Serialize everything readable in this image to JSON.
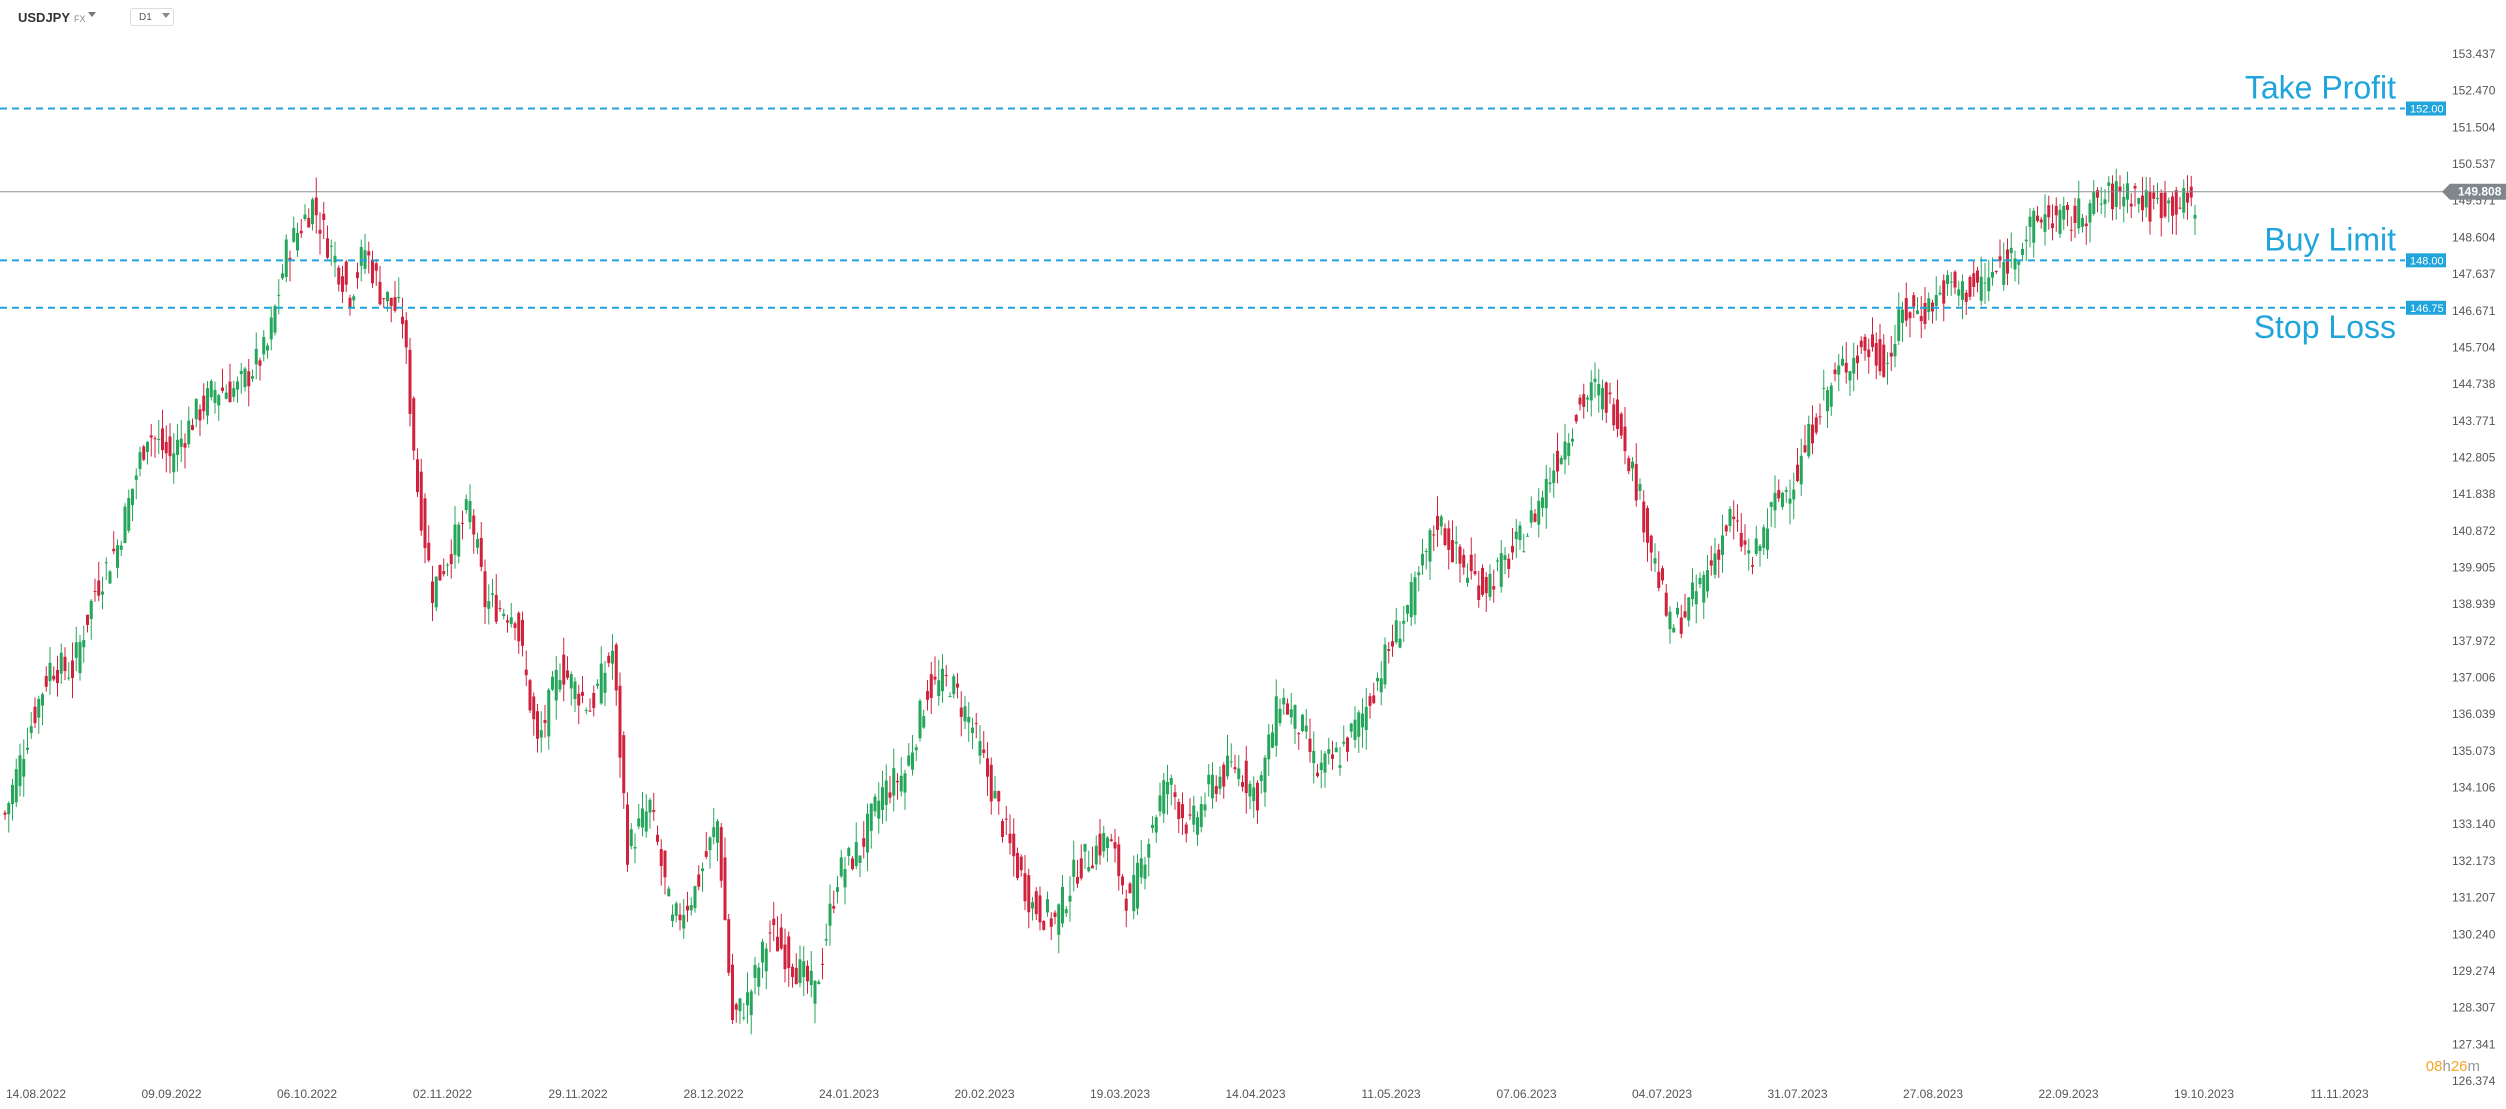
{
  "header": {
    "symbol": "USDJPY",
    "market": "FX",
    "timeframe": "D1"
  },
  "timer": {
    "hours": "08",
    "h": "h",
    "minutes": "26",
    "m": "m"
  },
  "colors": {
    "bull": "#26a65b",
    "bear": "#d0213d",
    "level": "#1fa5dc",
    "current": "#8a8f94"
  },
  "chart_data": {
    "type": "candlestick",
    "yticks": [
      153.437,
      152.47,
      151.504,
      150.537,
      149.571,
      148.604,
      147.637,
      146.671,
      145.704,
      144.738,
      143.771,
      142.805,
      141.838,
      140.872,
      139.905,
      138.939,
      137.972,
      137.006,
      136.039,
      135.073,
      134.106,
      133.14,
      132.173,
      131.207,
      130.24,
      129.274,
      128.307,
      127.341,
      126.374
    ],
    "ytick_labels": [
      "153.437",
      "152.470",
      "151.504",
      "150.537",
      "149.571",
      "148.604",
      "147.637",
      "146.671",
      "145.704",
      "144.738",
      "143.771",
      "142.805",
      "141.838",
      "140.872",
      "139.905",
      "138.939",
      "137.972",
      "137.006",
      "136.039",
      "135.073",
      "134.106",
      "133.140",
      "132.173",
      "131.207",
      "130.240",
      "129.274",
      "128.307",
      "127.341",
      "126.374"
    ],
    "xtick_labels": [
      "14.08.2022",
      "09.09.2022",
      "06.10.2022",
      "02.11.2022",
      "29.11.2022",
      "28.12.2022",
      "24.01.2023",
      "20.02.2023",
      "19.03.2023",
      "14.04.2023",
      "11.05.2023",
      "07.06.2023",
      "04.07.2023",
      "31.07.2023",
      "27.08.2023",
      "22.09.2023",
      "19.10.2023",
      "11.11.2023"
    ],
    "current_price": 149.808,
    "current_price_label": "149.808",
    "levels": [
      {
        "name": "Take Profit",
        "price": 152.0,
        "tag": "152.00"
      },
      {
        "name": "Buy Limit",
        "price": 148.0,
        "tag": "148.00"
      },
      {
        "name": "Stop Loss",
        "price": 146.75,
        "tag": "146.75"
      }
    ],
    "anchors": [
      [
        0,
        133.4
      ],
      [
        6,
        135.5
      ],
      [
        12,
        137.3
      ],
      [
        18,
        137.2
      ],
      [
        24,
        139.3
      ],
      [
        30,
        140.5
      ],
      [
        38,
        143.5
      ],
      [
        44,
        142.8
      ],
      [
        50,
        143.8
      ],
      [
        56,
        144.6
      ],
      [
        62,
        144.6
      ],
      [
        70,
        145.7
      ],
      [
        75,
        148.2
      ],
      [
        82,
        149.5
      ],
      [
        86,
        148.5
      ],
      [
        92,
        147.1
      ],
      [
        96,
        148.3
      ],
      [
        100,
        147.2
      ],
      [
        106,
        146.5
      ],
      [
        110,
        142.0
      ],
      [
        114,
        139.3
      ],
      [
        118,
        140.2
      ],
      [
        124,
        141.5
      ],
      [
        128,
        139.0
      ],
      [
        136,
        138.7
      ],
      [
        142,
        135.2
      ],
      [
        148,
        137.3
      ],
      [
        156,
        136.2
      ],
      [
        162,
        137.7
      ],
      [
        166,
        132.5
      ],
      [
        172,
        133.6
      ],
      [
        178,
        130.5
      ],
      [
        184,
        131.4
      ],
      [
        190,
        133.2
      ],
      [
        194,
        128.0
      ],
      [
        198,
        128.5
      ],
      [
        204,
        130.3
      ],
      [
        210,
        129.5
      ],
      [
        216,
        128.7
      ],
      [
        222,
        131.8
      ],
      [
        228,
        132.5
      ],
      [
        234,
        134.0
      ],
      [
        240,
        134.5
      ],
      [
        246,
        136.7
      ],
      [
        252,
        136.9
      ],
      [
        258,
        135.7
      ],
      [
        264,
        133.8
      ],
      [
        268,
        132.5
      ],
      [
        274,
        131.0
      ],
      [
        280,
        130.6
      ],
      [
        286,
        132.0
      ],
      [
        294,
        132.8
      ],
      [
        300,
        131.0
      ],
      [
        306,
        133.2
      ],
      [
        310,
        134.3
      ],
      [
        316,
        133.0
      ],
      [
        322,
        134.2
      ],
      [
        328,
        134.7
      ],
      [
        334,
        133.9
      ],
      [
        340,
        136.5
      ],
      [
        346,
        135.6
      ],
      [
        350,
        134.5
      ],
      [
        356,
        135.0
      ],
      [
        362,
        136.0
      ],
      [
        368,
        137.5
      ],
      [
        376,
        139.3
      ],
      [
        382,
        141.2
      ],
      [
        388,
        140.0
      ],
      [
        394,
        139.4
      ],
      [
        400,
        140.0
      ],
      [
        406,
        140.9
      ],
      [
        414,
        142.8
      ],
      [
        420,
        144.2
      ],
      [
        424,
        144.6
      ],
      [
        430,
        144.0
      ],
      [
        436,
        141.7
      ],
      [
        440,
        140.0
      ],
      [
        444,
        138.3
      ],
      [
        448,
        138.7
      ],
      [
        454,
        139.8
      ],
      [
        460,
        141.2
      ],
      [
        466,
        140.0
      ],
      [
        472,
        141.6
      ],
      [
        478,
        142.4
      ],
      [
        484,
        144.2
      ],
      [
        490,
        145.2
      ],
      [
        496,
        145.7
      ],
      [
        502,
        145.3
      ],
      [
        506,
        146.6
      ],
      [
        512,
        146.7
      ],
      [
        518,
        147.3
      ],
      [
        522,
        147.2
      ],
      [
        528,
        147.4
      ],
      [
        534,
        148.0
      ],
      [
        540,
        148.8
      ],
      [
        544,
        149.2
      ],
      [
        550,
        149.0
      ],
      [
        556,
        149.4
      ],
      [
        562,
        149.7
      ],
      [
        566,
        149.9
      ],
      [
        572,
        149.4
      ],
      [
        574,
        149.5
      ],
      [
        584,
        149.5
      ]
    ]
  }
}
